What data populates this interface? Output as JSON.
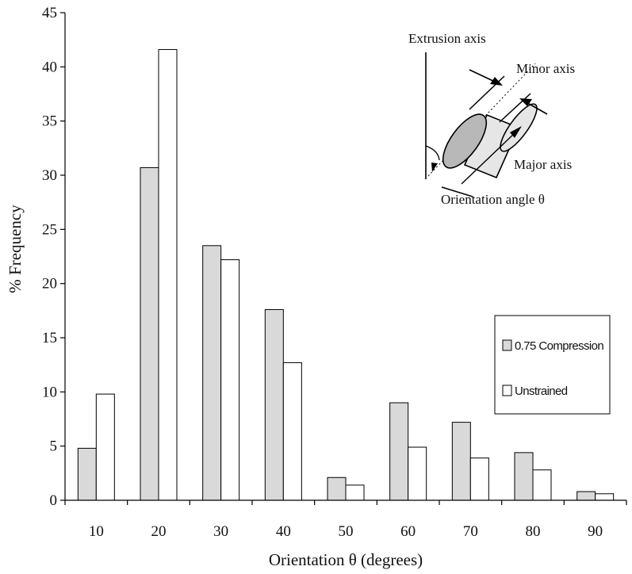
{
  "chart_data": {
    "type": "bar",
    "title": "",
    "xlabel": "Orientation θ (degrees)",
    "ylabel": "% Frequency",
    "categories": [
      "10",
      "20",
      "30",
      "40",
      "50",
      "60",
      "70",
      "80",
      "90"
    ],
    "series": [
      {
        "name": "0.75 Compression",
        "color": "#d9d9d9",
        "values": [
          4.8,
          30.7,
          23.5,
          17.6,
          2.1,
          9.0,
          7.2,
          4.4,
          0.8
        ]
      },
      {
        "name": "Unstrained",
        "color": "#ffffff",
        "values": [
          9.8,
          41.6,
          22.2,
          12.7,
          1.4,
          4.9,
          3.9,
          2.8,
          0.6
        ]
      }
    ],
    "ylim": [
      0,
      45
    ],
    "yticks": [
      0,
      5,
      10,
      15,
      20,
      25,
      30,
      35,
      40,
      45
    ],
    "grid": false,
    "legend_position": "right-middle",
    "inset_diagram": {
      "labels": {
        "extrusion_axis": "Extrusion axis",
        "minor_axis": "Minor axis",
        "major_axis": "Major axis",
        "orientation_angle": "Orientation angle θ"
      }
    }
  }
}
